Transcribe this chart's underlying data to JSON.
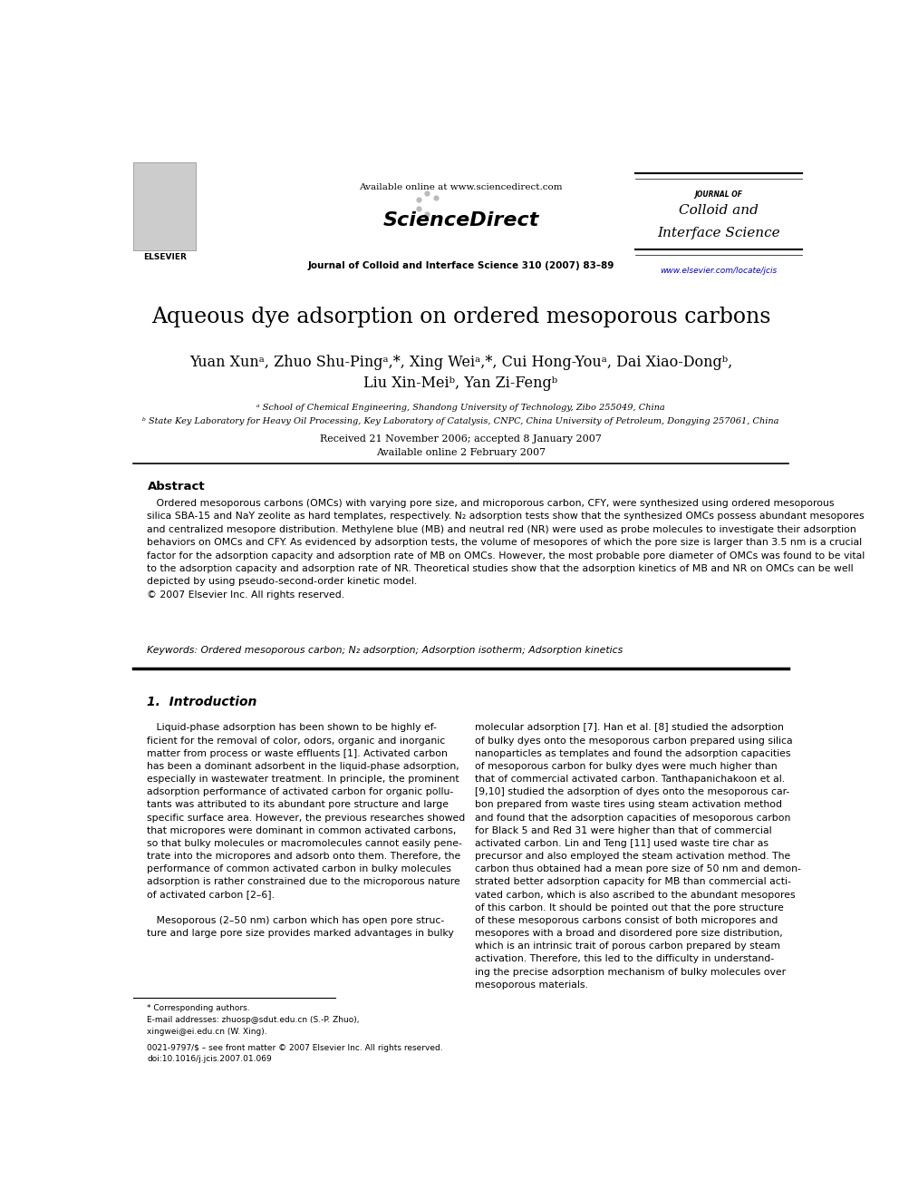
{
  "background_color": "#ffffff",
  "page_width": 9.92,
  "page_height": 13.23,
  "header": {
    "available_online": "Available online at www.sciencedirect.com",
    "journal_name_small": "JOURNAL OF",
    "journal_name_line1": "Colloid and",
    "journal_name_line2": "Interface Science",
    "journal_info": "Journal of Colloid and Interface Science 310 (2007) 83–89",
    "elsevier_url": "www.elsevier.com/locate/jcis"
  },
  "title": "Aqueous dye adsorption on ordered mesoporous carbons",
  "received": "Received 21 November 2006; accepted 8 January 2007",
  "available_online2": "Available online 2 February 2007",
  "abstract_title": "Abstract",
  "keywords": "Keywords: Ordered mesoporous carbon; N₂ adsorption; Adsorption isotherm; Adsorption kinetics",
  "section1_title": "1.  Introduction",
  "footnote_issn": "0021-9797/$ – see front matter © 2007 Elsevier Inc. All rights reserved.",
  "footnote_doi": "doi:10.1016/j.jcis.2007.01.069",
  "colors": {
    "black": "#000000",
    "blue_link": "#0000cc",
    "gray_text": "#555555",
    "light_gray": "#aaaaaa"
  }
}
